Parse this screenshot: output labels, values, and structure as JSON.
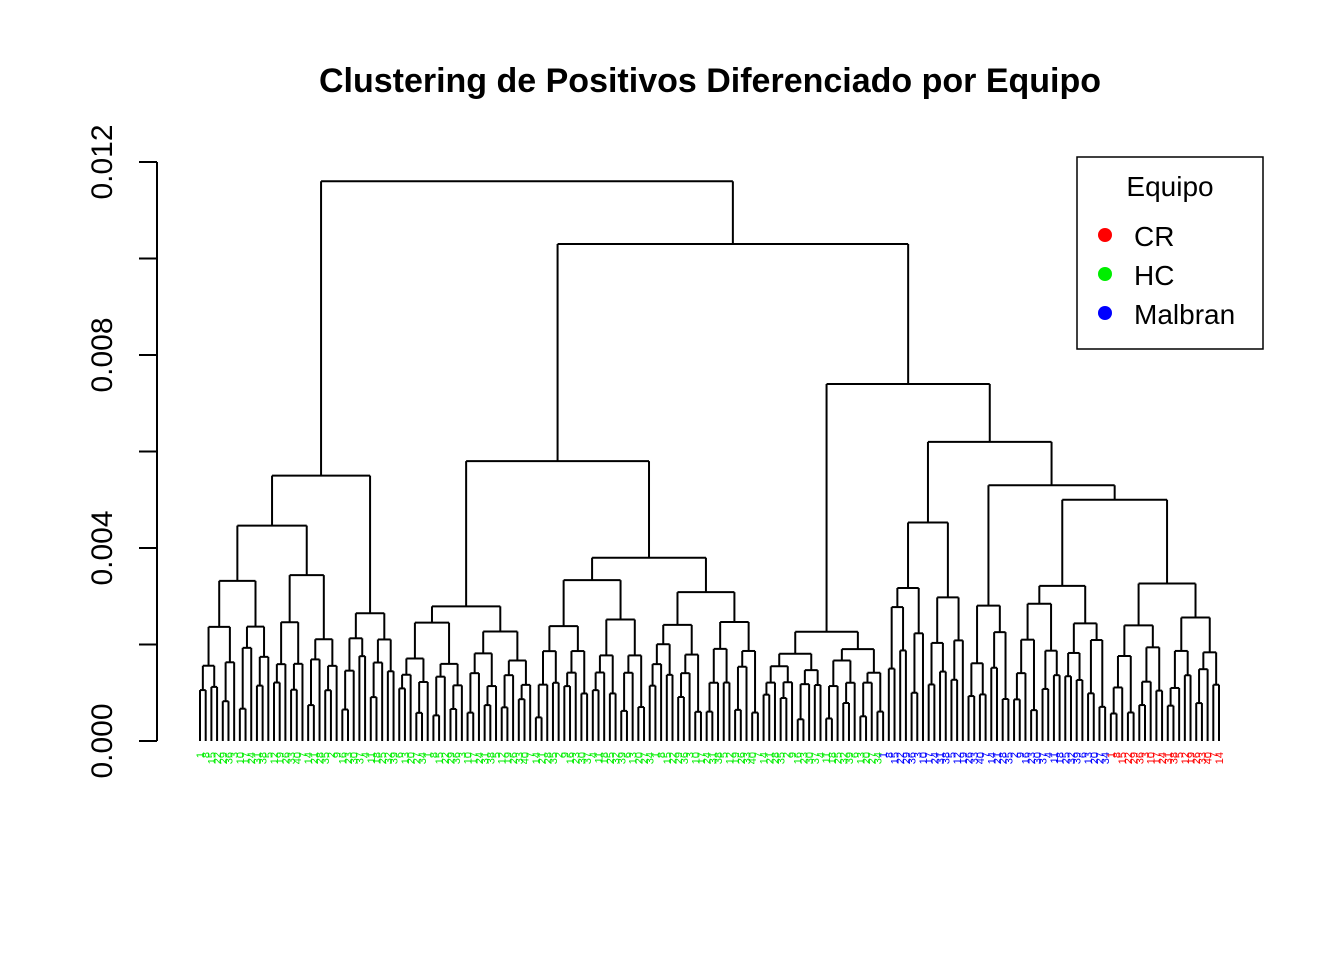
{
  "chart_data": {
    "type": "dendrogram",
    "title": "Clustering de Positivos Diferenciado por Equipo",
    "xlabel": "",
    "ylabel": "",
    "ylim": [
      0,
      0.012
    ],
    "y_ticks": [
      {
        "value": 0,
        "label": "0.000"
      },
      {
        "value": 0.002,
        "label": ""
      },
      {
        "value": 0.004,
        "label": "0.004"
      },
      {
        "value": 0.006,
        "label": ""
      },
      {
        "value": 0.008,
        "label": "0.008"
      },
      {
        "value": 0.01,
        "label": ""
      },
      {
        "value": 0.012,
        "label": "0.012"
      }
    ],
    "legend": {
      "title": "Equipo",
      "position": "top-right",
      "entries": [
        {
          "name": "CR",
          "color": "#ff0000"
        },
        {
          "name": "HC",
          "color": "#00ee00"
        },
        {
          "name": "Malbran",
          "color": "#0000ff"
        }
      ]
    },
    "groups": [
      {
        "name": "HC",
        "leaf_count": 120,
        "color": "#00ee00"
      },
      {
        "name": "Malbran",
        "leaf_count": 40,
        "color": "#0000ff"
      },
      {
        "name": "CR",
        "leaf_count": 20,
        "color": "#ff0000"
      }
    ],
    "merge_heights": {
      "root": 0.0116,
      "big_branch": 0.0103,
      "left_cluster": 0.0055,
      "middle_cluster": 0.0058,
      "right_branch": 0.0074,
      "right_sub": 0.0062,
      "right_sub2": 0.0053,
      "right_sub3": 0.005
    }
  }
}
